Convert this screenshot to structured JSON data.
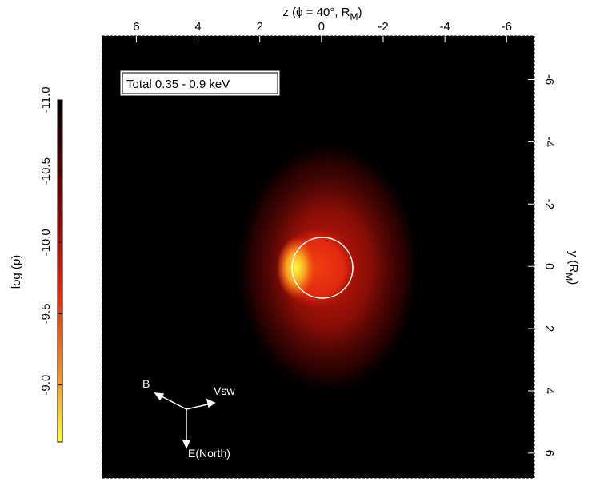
{
  "chart_data": {
    "type": "image",
    "xlabel": "z (ϕ = 40°, R",
    "xlabel_subscript": "M",
    "xlabel_end": ")",
    "ylabel": "y (R",
    "ylabel_subscript": "M",
    "ylabel_end": ")",
    "colorbar_label": "log (p)",
    "xlim": [
      7.1,
      -6.9
    ],
    "xticks": [
      6,
      4,
      2,
      0,
      -2,
      -4,
      -6
    ],
    "ylim": [
      -7.4,
      6.8
    ],
    "yticks": [
      -6,
      -4,
      -2,
      0,
      2,
      4,
      6
    ],
    "clim": [
      -11.0,
      -8.6
    ],
    "cticks": [
      {
        "value": -11.0,
        "label": "-11.0"
      },
      {
        "value": -10.5,
        "label": "-10.5"
      },
      {
        "value": -10.0,
        "label": "-10.0"
      },
      {
        "value": -9.5,
        "label": "-9.5"
      },
      {
        "value": -9.0,
        "label": "-9.0"
      }
    ],
    "annotations": [
      "Total 0.35 - 0.9 keV",
      "B",
      "Vsw",
      "E(North)"
    ]
  }
}
